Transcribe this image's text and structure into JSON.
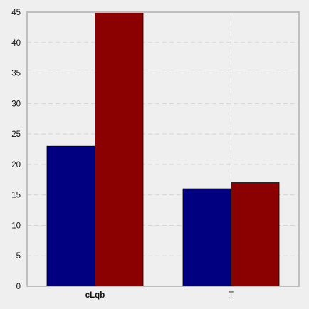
{
  "chart_data": {
    "type": "bar",
    "categories": [
      "cLqb",
      "T"
    ],
    "series": [
      {
        "values": [
          23,
          16
        ],
        "color": "#000080"
      },
      {
        "values": [
          45,
          17
        ],
        "color": "#8b0000"
      }
    ],
    "ylim": [
      0,
      45
    ],
    "yticks": [
      0,
      5,
      10,
      15,
      20,
      25,
      30,
      35,
      40,
      45
    ],
    "grid": true,
    "background": "#efefef",
    "frame_color": "#bfbfbf"
  }
}
